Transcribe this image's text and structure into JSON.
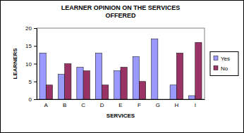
{
  "chart_data": {
    "type": "bar",
    "title": "LEARNER OPINION ON THE SERVICES OFFERED",
    "x_label": "SERVICES",
    "y_label": "LEARNERS",
    "categories": [
      "A",
      "B",
      "C",
      "D",
      "E",
      "F",
      "G",
      "H",
      "I"
    ],
    "series": [
      {
        "name": "Yes",
        "color": "#9999ff",
        "values": [
          13,
          7,
          9,
          13,
          8,
          12,
          17,
          4,
          1
        ]
      },
      {
        "name": "No",
        "color": "#993366",
        "values": [
          4,
          10,
          8,
          4,
          9,
          5,
          0,
          13,
          16
        ]
      }
    ],
    "ylim": [
      0,
      20
    ],
    "yticks": [
      0,
      5,
      10,
      15,
      20
    ],
    "grid": false,
    "legend": "right"
  }
}
